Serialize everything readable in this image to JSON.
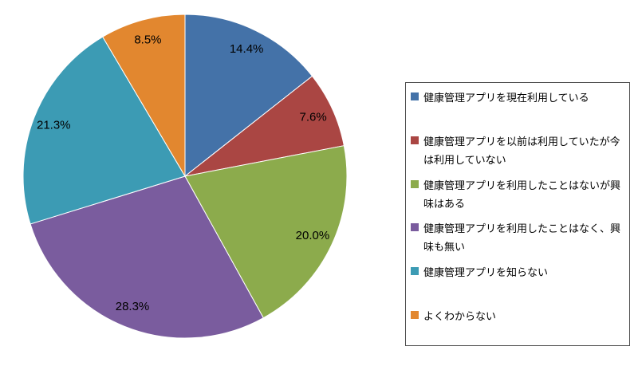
{
  "chart_data": {
    "type": "pie",
    "title": "",
    "direction": "clockwise",
    "start_angle_deg": 0,
    "labels_format": "percent_one_decimal",
    "legend_position": "right",
    "background_color": "#ffffff",
    "label_color": "#000000",
    "legend_border_color": "#4d4d4d",
    "series": [
      {
        "label": "健康管理アプリを現在利用している",
        "value": 14.4,
        "pct_label": "14.4%",
        "color": "#4472A8"
      },
      {
        "label": "健康管理アプリを以前は利用していたが今は利用していない",
        "value": 7.6,
        "pct_label": "7.6%",
        "color": "#AA4643"
      },
      {
        "label": "健康管理アプリを利用したことはないが興味はある",
        "value": 20.0,
        "pct_label": "20.0%",
        "color": "#8CAB4C"
      },
      {
        "label": "健康管理アプリを利用したことはなく、興味も無い",
        "value": 28.3,
        "pct_label": "28.3%",
        "color": "#7A5C9E"
      },
      {
        "label": "健康管理アプリを知らない",
        "value": 21.3,
        "pct_label": "21.3%",
        "color": "#3C9BB4"
      },
      {
        "label": "よくわからない",
        "value": 8.5,
        "pct_label": "8.5%",
        "color": "#E2872F"
      }
    ]
  }
}
